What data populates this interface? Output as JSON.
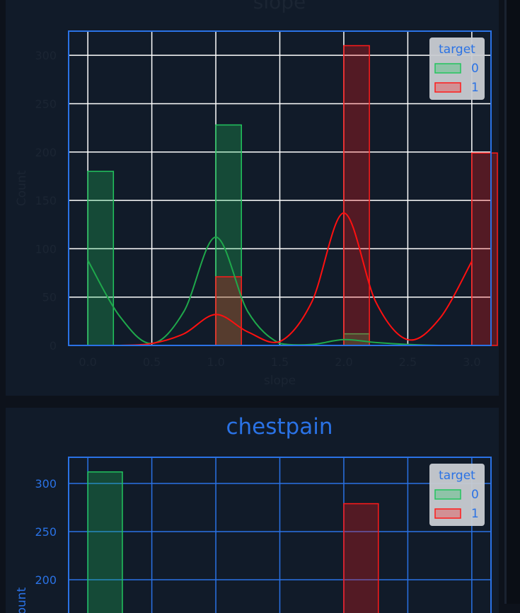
{
  "chart_data": [
    {
      "type": "bar",
      "title": "slope",
      "xlabel": "slope",
      "ylabel": "Count",
      "xlim": [
        -0.15,
        3.15
      ],
      "ylim": [
        0,
        325
      ],
      "xticks": [
        "0.0",
        "0.5",
        "1.0",
        "1.5",
        "2.0",
        "2.5",
        "3.0"
      ],
      "yticks": [
        "0",
        "50",
        "100",
        "150",
        "200",
        "250",
        "300"
      ],
      "grid": true,
      "legend": {
        "title": "target",
        "position": "top-right",
        "entries": [
          "0",
          "1"
        ]
      },
      "bin_edges": [
        0.0,
        0.2,
        0.8,
        1.0,
        1.2,
        1.8,
        2.0,
        2.2,
        2.8,
        3.0
      ],
      "series": [
        {
          "name": "0",
          "color": "#22c55e",
          "x": [
            0.0,
            1.0,
            2.0,
            3.0
          ],
          "values": [
            180,
            228,
            12,
            0
          ]
        },
        {
          "name": "1",
          "color": "#ff1a1a",
          "x": [
            0.0,
            1.0,
            2.0,
            3.0
          ],
          "values": [
            0,
            71,
            310,
            199
          ]
        }
      ],
      "kde": [
        {
          "name": "0",
          "color": "#1fa84b",
          "x": [
            0.0,
            0.25,
            0.5,
            0.75,
            1.0,
            1.25,
            1.5,
            1.75,
            2.0,
            2.25,
            2.5,
            2.75,
            3.0
          ],
          "values": [
            88,
            30,
            2,
            35,
            112,
            35,
            2,
            1,
            6,
            3,
            1,
            0,
            0
          ]
        },
        {
          "name": "1",
          "color": "#ff1010",
          "x": [
            0.0,
            0.25,
            0.5,
            0.75,
            1.0,
            1.25,
            1.5,
            1.75,
            2.0,
            2.25,
            2.5,
            2.75,
            3.0
          ],
          "values": [
            0,
            0,
            2,
            12,
            32,
            14,
            4,
            45,
            137,
            45,
            6,
            28,
            87
          ]
        }
      ]
    },
    {
      "type": "bar",
      "title": "chestpain",
      "xlabel": "",
      "ylabel": "Count",
      "xlim": [
        -0.15,
        3.15
      ],
      "ylim": [
        182,
        327
      ],
      "yticks": [
        "200",
        "250",
        "300"
      ],
      "grid": true,
      "legend": {
        "title": "target",
        "position": "top-right",
        "entries": [
          "0",
          "1"
        ]
      },
      "series": [
        {
          "name": "0",
          "color": "#22c55e",
          "x": [
            0.0
          ],
          "values": [
            312
          ]
        },
        {
          "name": "1",
          "color": "#ff1a1a",
          "x": [
            2.0
          ],
          "values": [
            279
          ]
        }
      ]
    }
  ],
  "colors": {
    "accent": "#2a72e5",
    "series0": "#22c55e",
    "series1": "#ff1a1a"
  }
}
